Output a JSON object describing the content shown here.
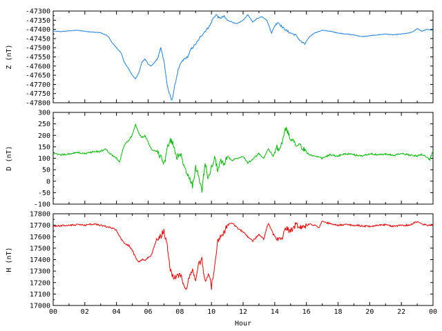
{
  "chart_data": {
    "type": "line",
    "xlabel": "Hour",
    "xlim": [
      0,
      24
    ],
    "x_ticks": [
      "00",
      "02",
      "04",
      "06",
      "08",
      "10",
      "12",
      "14",
      "16",
      "18",
      "20",
      "22",
      "00"
    ],
    "panels": [
      {
        "id": "z",
        "ylabel": "Z (nT)",
        "color": "#1a7fe0",
        "ylim": [
          -47800,
          -47300
        ],
        "y_ticks": [
          -47300,
          -47350,
          -47400,
          -47450,
          -47500,
          -47550,
          -47600,
          -47650,
          -47700,
          -47750,
          -47800
        ],
        "series": [
          {
            "x": [
              0,
              0.5,
              1,
              1.5,
              2,
              2.5,
              3,
              3.3,
              3.5,
              3.7,
              4,
              4.3,
              4.5,
              4.8,
              5,
              5.2,
              5.4,
              5.6,
              5.8,
              6,
              6.2,
              6.4,
              6.6,
              6.8,
              7,
              7.1,
              7.2,
              7.3,
              7.5,
              7.7,
              7.9,
              8.1,
              8.3,
              8.5,
              8.7,
              8.9,
              9.1,
              9.3,
              9.5,
              9.7,
              9.9,
              10.1,
              10.3,
              10.5,
              10.8,
              11,
              11.3,
              11.6,
              12,
              12.3,
              12.6,
              12.9,
              13.2,
              13.5,
              13.8,
              14,
              14.2,
              14.5,
              14.8,
              15,
              15.3,
              15.5,
              15.7,
              15.9,
              16.2,
              16.5,
              17,
              17.5,
              18,
              18.5,
              19,
              19.5,
              20,
              20.5,
              21,
              21.5,
              22,
              22.5,
              22.8,
              23,
              23.3,
              23.6,
              24
            ],
            "y": [
              -47410,
              -47412,
              -47408,
              -47405,
              -47410,
              -47415,
              -47418,
              -47430,
              -47440,
              -47470,
              -47500,
              -47530,
              -47580,
              -47620,
              -47650,
              -47670,
              -47640,
              -47580,
              -47560,
              -47590,
              -47600,
              -47580,
              -47560,
              -47500,
              -47570,
              -47640,
              -47700,
              -47740,
              -47790,
              -47700,
              -47620,
              -47580,
              -47560,
              -47550,
              -47510,
              -47490,
              -47470,
              -47440,
              -47420,
              -47400,
              -47380,
              -47340,
              -47320,
              -47340,
              -47330,
              -47350,
              -47360,
              -47370,
              -47350,
              -47320,
              -47360,
              -47340,
              -47330,
              -47350,
              -47420,
              -47380,
              -47360,
              -47390,
              -47410,
              -47420,
              -47430,
              -47450,
              -47470,
              -47480,
              -47440,
              -47420,
              -47405,
              -47410,
              -47420,
              -47425,
              -47430,
              -47440,
              -47435,
              -47430,
              -47425,
              -47430,
              -47425,
              -47420,
              -47410,
              -47395,
              -47410,
              -47400,
              -47405
            ]
          }
        ]
      },
      {
        "id": "d",
        "ylabel": "D (nT)",
        "color": "#00bb00",
        "ylim": [
          -100,
          300
        ],
        "y_ticks": [
          300,
          250,
          200,
          150,
          100,
          50,
          0,
          -50,
          -100
        ],
        "series": [
          {
            "x": [
              0,
              0.5,
              1,
              1.5,
              2,
              2.5,
              3,
              3.3,
              3.6,
              4,
              4.2,
              4.5,
              4.8,
              5,
              5.2,
              5.4,
              5.6,
              5.8,
              6,
              6.2,
              6.5,
              6.8,
              7,
              7.2,
              7.4,
              7.6,
              7.8,
              8,
              8.2,
              8.4,
              8.6,
              8.8,
              9,
              9.2,
              9.4,
              9.6,
              9.8,
              10,
              10.2,
              10.4,
              10.6,
              10.8,
              11,
              11.3,
              11.6,
              12,
              12.3,
              12.6,
              13,
              13.3,
              13.6,
              13.9,
              14.1,
              14.3,
              14.5,
              14.7,
              14.9,
              15.2,
              15.5,
              15.8,
              16.1,
              16.4,
              16.7,
              17,
              17.5,
              18,
              18.5,
              19,
              19.5,
              20,
              20.5,
              21,
              21.5,
              22,
              22.5,
              23,
              23.3,
              23.6,
              23.8,
              24
            ],
            "y": [
              120,
              115,
              118,
              125,
              120,
              128,
              130,
              140,
              120,
              100,
              85,
              160,
              180,
              200,
              250,
              210,
              190,
              200,
              170,
              140,
              130,
              110,
              70,
              140,
              180,
              160,
              100,
              130,
              80,
              40,
              10,
              -20,
              60,
              20,
              -40,
              80,
              10,
              60,
              100,
              50,
              90,
              70,
              110,
              90,
              100,
              110,
              80,
              95,
              120,
              100,
              140,
              110,
              150,
              130,
              180,
              230,
              200,
              170,
              160,
              140,
              120,
              110,
              105,
              100,
              115,
              110,
              120,
              115,
              110,
              120,
              115,
              118,
              112,
              120,
              115,
              110,
              118,
              105,
              95,
              130
            ]
          }
        ]
      },
      {
        "id": "h",
        "ylabel": "H (nT)",
        "color": "#ee0000",
        "ylim": [
          17000,
          17800
        ],
        "y_ticks": [
          17800,
          17700,
          17600,
          17500,
          17400,
          17300,
          17200,
          17100,
          17000
        ],
        "series": [
          {
            "x": [
              0,
              0.5,
              1,
              1.5,
              2,
              2.5,
              3,
              3.3,
              3.6,
              4,
              4.2,
              4.5,
              4.8,
              5,
              5.2,
              5.4,
              5.6,
              5.8,
              6,
              6.2,
              6.5,
              6.8,
              7,
              7.2,
              7.4,
              7.6,
              7.8,
              8,
              8.2,
              8.4,
              8.6,
              8.8,
              9,
              9.2,
              9.4,
              9.6,
              9.8,
              10,
              10.2,
              10.4,
              10.6,
              10.8,
              11,
              11.3,
              11.6,
              12,
              12.3,
              12.6,
              13,
              13.3,
              13.6,
              13.9,
              14.1,
              14.4,
              14.7,
              15,
              15.3,
              15.6,
              15.9,
              16.2,
              16.5,
              16.8,
              17,
              17.3,
              17.6,
              18,
              18.5,
              19,
              19.5,
              20,
              20.5,
              21,
              21.5,
              22,
              22.5,
              22.8,
              23,
              23.3,
              23.6,
              24
            ],
            "y": [
              17690,
              17695,
              17700,
              17705,
              17700,
              17710,
              17700,
              17690,
              17680,
              17660,
              17600,
              17540,
              17520,
              17480,
              17420,
              17380,
              17400,
              17390,
              17420,
              17440,
              17560,
              17600,
              17660,
              17520,
              17300,
              17250,
              17240,
              17280,
              17200,
              17120,
              17260,
              17300,
              17220,
              17360,
              17400,
              17200,
              17280,
              17160,
              17350,
              17560,
              17600,
              17640,
              17700,
              17720,
              17680,
              17640,
              17600,
              17560,
              17620,
              17580,
              17720,
              17620,
              17600,
              17560,
              17680,
              17650,
              17700,
              17680,
              17690,
              17710,
              17700,
              17680,
              17740,
              17720,
              17710,
              17700,
              17705,
              17700,
              17695,
              17690,
              17700,
              17705,
              17690,
              17700,
              17700,
              17720,
              17730,
              17710,
              17700,
              17705
            ]
          }
        ]
      }
    ]
  }
}
